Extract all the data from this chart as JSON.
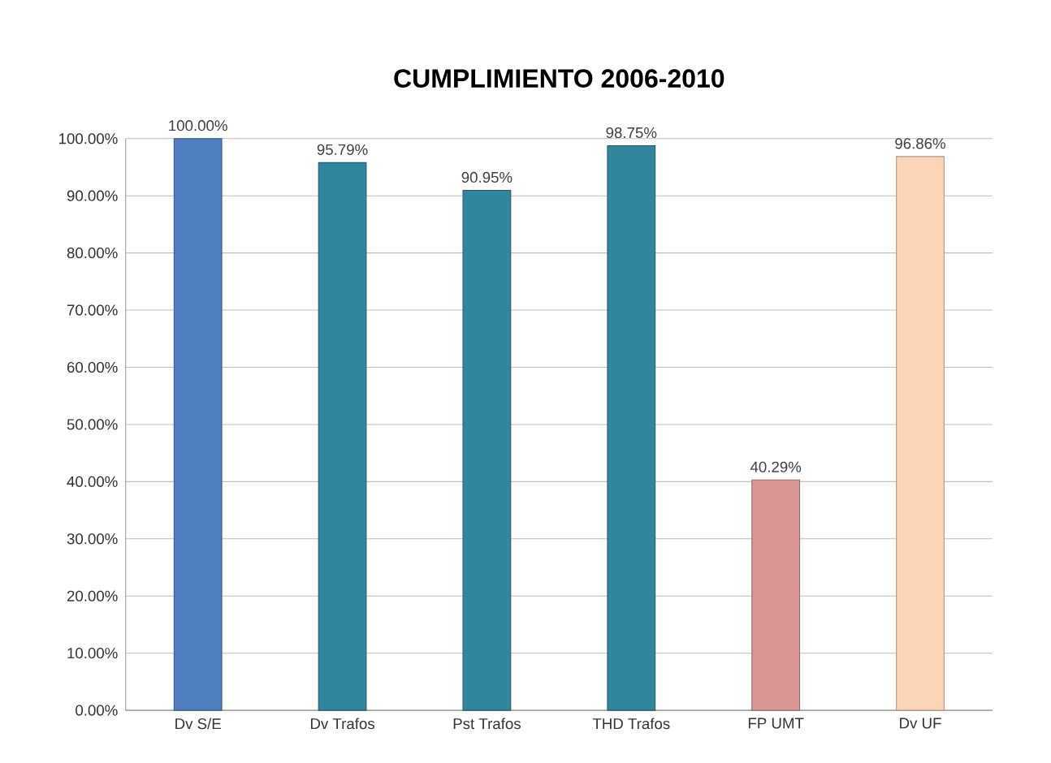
{
  "chart_data": {
    "type": "bar",
    "title": "CUMPLIMIENTO 2006-2010",
    "categories": [
      "Dv S/E",
      "Dv Trafos",
      "Pst Trafos",
      "THD Trafos",
      "FP UMT",
      "Dv UF"
    ],
    "values": [
      100,
      95.79,
      90.95,
      98.75,
      40.29,
      96.86
    ],
    "colors": [
      "#4f7fc0",
      "#31859c",
      "#31859c",
      "#31859c",
      "#d99694",
      "#fbd5b5"
    ],
    "value_labels": [
      "100.00%",
      "95.79%",
      "90.95%",
      "98.75%",
      "40.29%",
      "96.86%"
    ],
    "ylim": [
      0,
      100
    ],
    "yticks": [
      {
        "value": 0,
        "label": "0.00%"
      },
      {
        "value": 10,
        "label": "10.00%"
      },
      {
        "value": 20,
        "label": "20.00%"
      },
      {
        "value": 30,
        "label": "30.00%"
      },
      {
        "value": 40,
        "label": "40.00%"
      },
      {
        "value": 50,
        "label": "50.00%"
      },
      {
        "value": 60,
        "label": "60.00%"
      },
      {
        "value": 70,
        "label": "70.00%"
      },
      {
        "value": 80,
        "label": "80.00%"
      },
      {
        "value": 90,
        "label": "90.00%"
      },
      {
        "value": 100,
        "label": "100.00%"
      }
    ],
    "grid": "y"
  }
}
